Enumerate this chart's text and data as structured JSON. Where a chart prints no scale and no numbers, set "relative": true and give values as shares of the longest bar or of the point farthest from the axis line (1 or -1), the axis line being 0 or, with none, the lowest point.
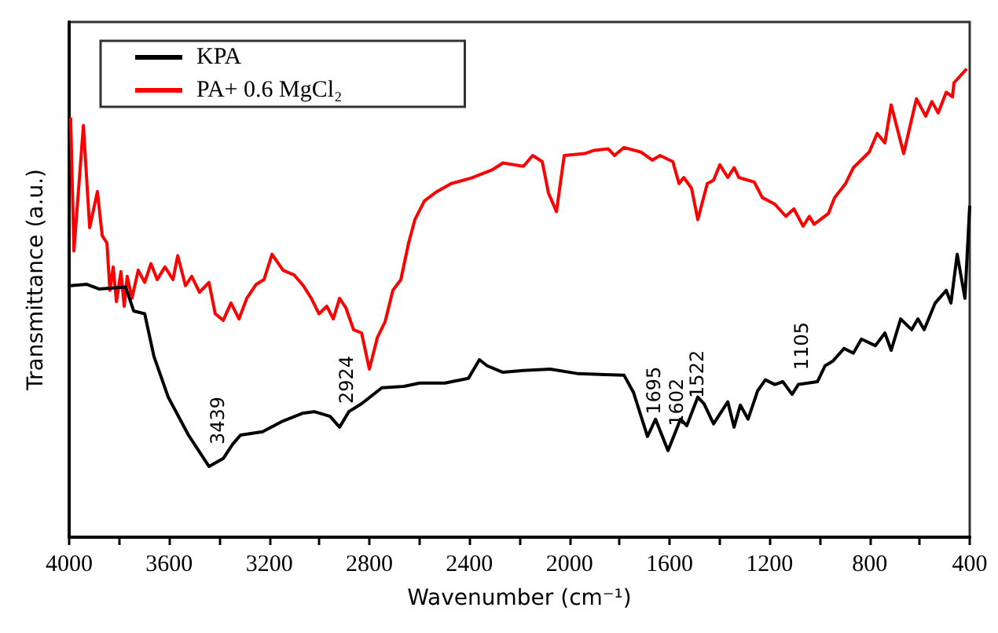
{
  "chart_data": {
    "type": "line",
    "relative": true,
    "xlabel": "Wavenumber (cm⁻¹)",
    "ylabel": "Transmittance (a.u.)",
    "xlim": [
      4000,
      400
    ],
    "xticks": [
      4000,
      {
        "value": 3800,
        "label": null
      },
      3600,
      {
        "value": 3400,
        "label": null
      },
      3200,
      {
        "value": 3000,
        "label": null
      },
      2800,
      {
        "value": 2600,
        "label": null
      },
      2400,
      {
        "value": 2200,
        "label": null
      },
      2000,
      {
        "value": 1800,
        "label": null
      },
      1600,
      {
        "value": 1400,
        "label": null
      },
      1200,
      {
        "value": 1000,
        "label": null
      },
      800,
      {
        "value": 600,
        "label": null
      },
      400
    ],
    "grid": false,
    "legend": "top left",
    "marker": "none",
    "line_style": "solid",
    "series": [
      {
        "name": "KPA",
        "color": "#000000",
        "x": [
          3994,
          3931,
          3881,
          3774,
          3742,
          3698,
          3661,
          3604,
          3523,
          3441,
          3384,
          3347,
          3315,
          3227,
          3145,
          3064,
          3020,
          2957,
          2919,
          2882,
          2831,
          2750,
          2662,
          2599,
          2498,
          2404,
          2360,
          2329,
          2266,
          2184,
          2077,
          1964,
          1782,
          1744,
          1688,
          1656,
          1606,
          1556,
          1531,
          1487,
          1462,
          1424,
          1367,
          1342,
          1317,
          1286,
          1248,
          1217,
          1179,
          1147,
          1110,
          1085,
          1009,
          978,
          947,
          902,
          865,
          833,
          777,
          739,
          714,
          676,
          632,
          607,
          582,
          538,
          494,
          475,
          450,
          419,
          400
        ],
        "values": [
          0.537,
          0.54,
          0.53,
          0.534,
          0.483,
          0.477,
          0.386,
          0.299,
          0.218,
          0.151,
          0.168,
          0.198,
          0.218,
          0.225,
          0.248,
          0.265,
          0.268,
          0.258,
          0.235,
          0.268,
          0.285,
          0.319,
          0.322,
          0.329,
          0.329,
          0.339,
          0.379,
          0.366,
          0.352,
          0.356,
          0.359,
          0.349,
          0.346,
          0.309,
          0.215,
          0.252,
          0.185,
          0.252,
          0.238,
          0.299,
          0.285,
          0.242,
          0.289,
          0.235,
          0.282,
          0.252,
          0.312,
          0.336,
          0.326,
          0.332,
          0.305,
          0.326,
          0.332,
          0.366,
          0.376,
          0.403,
          0.393,
          0.423,
          0.409,
          0.436,
          0.399,
          0.466,
          0.443,
          0.466,
          0.443,
          0.5,
          0.527,
          0.5,
          0.604,
          0.51,
          0.708
        ]
      },
      {
        "name": "PA+ 0.6 MgCl₂",
        "color": "#ff0000",
        "x": [
          3994,
          3981,
          3943,
          3918,
          3887,
          3868,
          3849,
          3837,
          3824,
          3811,
          3793,
          3780,
          3768,
          3749,
          3724,
          3698,
          3673,
          3648,
          3617,
          3585,
          3566,
          3535,
          3510,
          3479,
          3441,
          3416,
          3384,
          3353,
          3321,
          3290,
          3252,
          3221,
          3189,
          3145,
          3101,
          3064,
          3032,
          3001,
          2970,
          2944,
          2919,
          2894,
          2863,
          2831,
          2800,
          2768,
          2737,
          2706,
          2674,
          2643,
          2618,
          2580,
          2530,
          2473,
          2392,
          2310,
          2266,
          2184,
          2147,
          2109,
          2084,
          2052,
          2021,
          1939,
          1901,
          1845,
          1820,
          1782,
          1713,
          1669,
          1638,
          1587,
          1562,
          1543,
          1512,
          1487,
          1449,
          1424,
          1399,
          1367,
          1342,
          1323,
          1261,
          1229,
          1179,
          1135,
          1103,
          1066,
          1041,
          1022,
          965,
          940,
          896,
          865,
          802,
          770,
          739,
          714,
          664,
          613,
          576,
          551,
          526,
          494,
          469,
          463,
          412
        ],
        "values": [
          0.896,
          0.611,
          0.879,
          0.661,
          0.738,
          0.644,
          0.628,
          0.527,
          0.577,
          0.503,
          0.567,
          0.493,
          0.557,
          0.51,
          0.57,
          0.544,
          0.584,
          0.55,
          0.577,
          0.55,
          0.601,
          0.537,
          0.557,
          0.523,
          0.544,
          0.477,
          0.463,
          0.5,
          0.466,
          0.51,
          0.54,
          0.55,
          0.604,
          0.57,
          0.56,
          0.537,
          0.51,
          0.477,
          0.493,
          0.466,
          0.51,
          0.49,
          0.443,
          0.436,
          0.359,
          0.426,
          0.46,
          0.527,
          0.55,
          0.628,
          0.678,
          0.718,
          0.738,
          0.755,
          0.767,
          0.784,
          0.799,
          0.792,
          0.815,
          0.802,
          0.735,
          0.695,
          0.815,
          0.819,
          0.826,
          0.829,
          0.815,
          0.832,
          0.822,
          0.805,
          0.815,
          0.802,
          0.755,
          0.768,
          0.745,
          0.678,
          0.755,
          0.762,
          0.795,
          0.768,
          0.789,
          0.768,
          0.758,
          0.725,
          0.711,
          0.685,
          0.701,
          0.664,
          0.685,
          0.668,
          0.691,
          0.725,
          0.755,
          0.789,
          0.822,
          0.862,
          0.842,
          0.923,
          0.819,
          0.936,
          0.899,
          0.93,
          0.906,
          0.95,
          0.94,
          0.97,
          1.0
        ]
      }
    ],
    "annotations": [
      {
        "text": "3439",
        "x": 3439,
        "y": 0.151
      },
      {
        "text": "2924",
        "x": 2924,
        "y": 0.238
      },
      {
        "text": "1695",
        "x": 1695,
        "y": 0.215
      },
      {
        "text": "1602",
        "x": 1602,
        "y": 0.19
      },
      {
        "text": "1522",
        "x": 1522,
        "y": 0.25
      },
      {
        "text": "1105",
        "x": 1105,
        "y": 0.31
      }
    ]
  }
}
